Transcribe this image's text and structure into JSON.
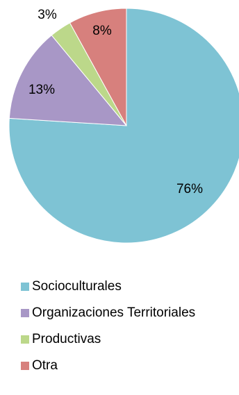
{
  "chart_data": {
    "type": "pie",
    "title": "",
    "categories": [
      "Socioculturales",
      "Organizaciones Territoriales",
      "Productivas",
      "Otra"
    ],
    "values": [
      76,
      13,
      3,
      8
    ],
    "data_labels": [
      "76%",
      "13%",
      "3%",
      "8%"
    ],
    "colors": [
      "#7EC3D4",
      "#A897C6",
      "#BCD88A",
      "#D7807D"
    ],
    "start_angle_deg": 0,
    "direction": "clockwise",
    "legend_position": "bottom"
  }
}
